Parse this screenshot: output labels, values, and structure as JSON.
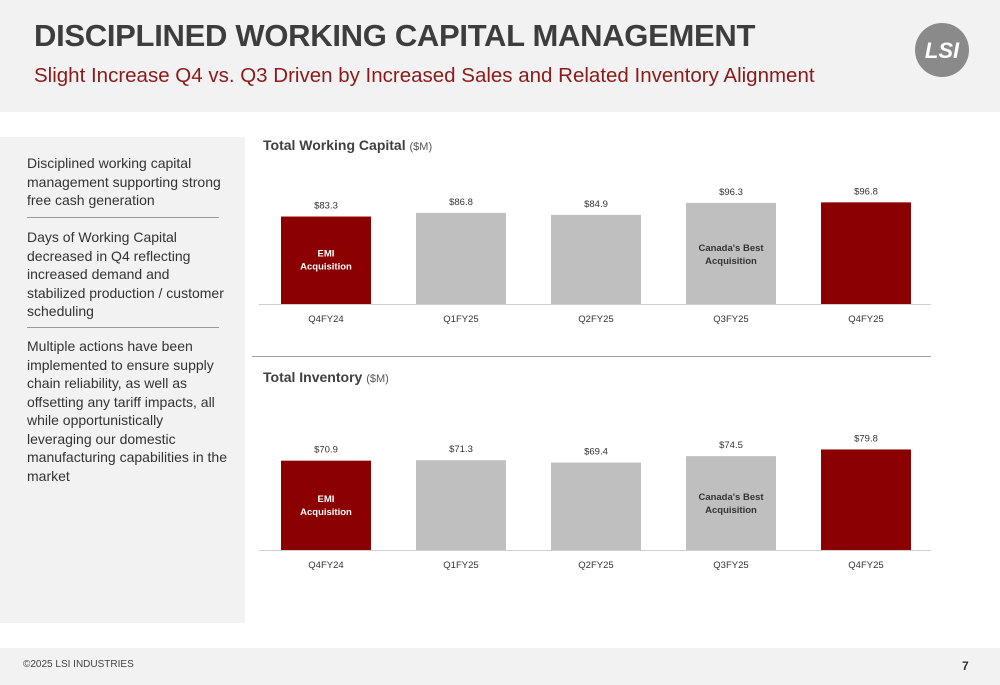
{
  "header": {
    "title": "DISCIPLINED WORKING CAPITAL MANAGEMENT",
    "subtitle": "Slight Increase Q4 vs. Q3 Driven by Increased Sales and Related Inventory Alignment",
    "logo_text": "LSI"
  },
  "sidebar": {
    "items": [
      {
        "text": "Disciplined working capital management supporting strong free cash generation"
      },
      {
        "text": "Days of Working Capital decreased in Q4 reflecting increased demand and stabilized production / customer scheduling"
      },
      {
        "text": "Multiple actions have been implemented to ensure supply chain reliability, as well as offsetting any tariff impacts, all while opportunistically leveraging our domestic manufacturing capabilities in the market"
      }
    ]
  },
  "colors": {
    "accent": "#8b0000",
    "neutral_bar": "#bfbfbf",
    "subtitle": "#8b1a1a"
  },
  "chart_data": [
    {
      "type": "bar",
      "title": "Total Working Capital",
      "unit": "($M)",
      "categories": [
        "Q4FY24",
        "Q1FY25",
        "Q2FY25",
        "Q3FY25",
        "Q4FY25"
      ],
      "values": [
        83.3,
        86.8,
        84.9,
        96.3,
        96.8
      ],
      "value_labels": [
        "$83.3",
        "$86.8",
        "$84.9",
        "$96.3",
        "$96.8"
      ],
      "highlight": [
        true,
        false,
        false,
        false,
        true
      ],
      "bar_annotations": [
        [
          "EMI",
          "Acquisition"
        ],
        [],
        [],
        [
          "Canada's Best",
          "Acquisition"
        ],
        []
      ],
      "ylim": [
        0,
        100
      ],
      "grid": false
    },
    {
      "type": "bar",
      "title": "Total Inventory",
      "unit": "($M)",
      "categories": [
        "Q4FY24",
        "Q1FY25",
        "Q2FY25",
        "Q3FY25",
        "Q4FY25"
      ],
      "values": [
        70.9,
        71.3,
        69.4,
        74.5,
        79.8
      ],
      "value_labels": [
        "$70.9",
        "$71.3",
        "$69.4",
        "$74.5",
        "$79.8"
      ],
      "highlight": [
        true,
        false,
        false,
        false,
        true
      ],
      "bar_annotations": [
        [
          "EMI",
          "Acquisition"
        ],
        [],
        [],
        [
          "Canada's Best",
          "Acquisition"
        ],
        []
      ],
      "ylim": [
        0,
        100
      ],
      "grid": false
    }
  ],
  "footer": {
    "copyright": "©2025 LSI INDUSTRIES",
    "page_number": "7"
  }
}
